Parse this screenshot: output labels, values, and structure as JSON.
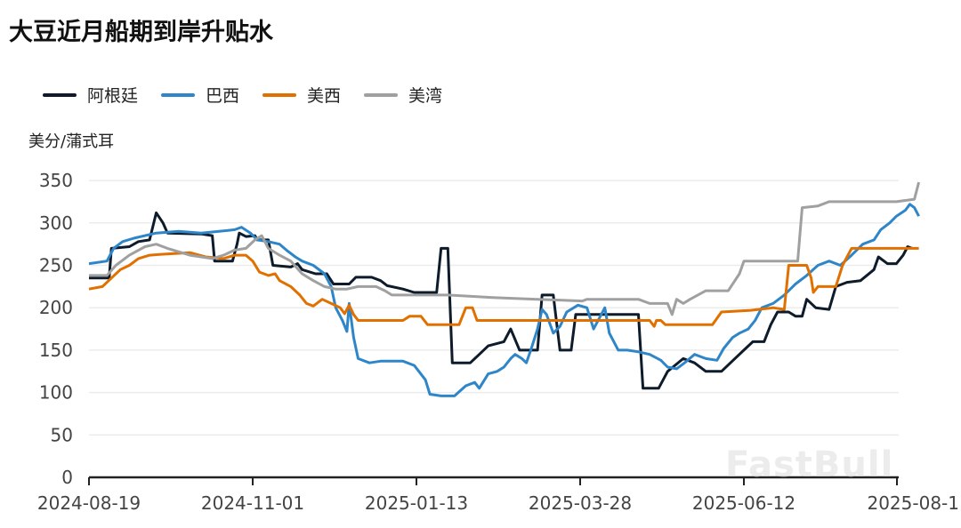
{
  "title": "大豆近月船期到岸升贴水",
  "unit_label": "美分/蒲式耳",
  "watermark": "FastBull",
  "legend": [
    {
      "name": "阿根廷",
      "color": "#0d1b2a"
    },
    {
      "name": "巴西",
      "color": "#2e86c9"
    },
    {
      "name": "美西",
      "color": "#e07000"
    },
    {
      "name": "美湾",
      "color": "#a0a0a0"
    }
  ],
  "chart_data": {
    "type": "line",
    "title": "大豆近月船期到岸升贴水",
    "xlabel": "",
    "ylabel": "美分/蒲式耳",
    "ylim": [
      0,
      350
    ],
    "yticks": [
      0,
      50,
      100,
      150,
      200,
      250,
      300,
      350
    ],
    "xticks": [
      "2024-08-19",
      "2024-11-01",
      "2025-01-13",
      "2025-03-28",
      "2025-06-12",
      "2025-08-1"
    ],
    "x_unit": "days since 2024-08-19",
    "grid": true,
    "legend_position": "top-left",
    "series": [
      {
        "name": "阿根廷",
        "color": "#0d1b2a",
        "points": [
          [
            0,
            235
          ],
          [
            9,
            235
          ],
          [
            10,
            270
          ],
          [
            18,
            272
          ],
          [
            22,
            278
          ],
          [
            27,
            280
          ],
          [
            30,
            312
          ],
          [
            33,
            300
          ],
          [
            35,
            288
          ],
          [
            50,
            287
          ],
          [
            55,
            285
          ],
          [
            56,
            255
          ],
          [
            64,
            255
          ],
          [
            66,
            275
          ],
          [
            67,
            288
          ],
          [
            70,
            284
          ],
          [
            74,
            285
          ],
          [
            75,
            280
          ],
          [
            80,
            280
          ],
          [
            82,
            250
          ],
          [
            90,
            248
          ],
          [
            93,
            252
          ],
          [
            95,
            245
          ],
          [
            101,
            240
          ],
          [
            106,
            240
          ],
          [
            109,
            228
          ],
          [
            116,
            228
          ],
          [
            119,
            236
          ],
          [
            126,
            236
          ],
          [
            130,
            232
          ],
          [
            133,
            226
          ],
          [
            140,
            222
          ],
          [
            145,
            218
          ],
          [
            155,
            218
          ],
          [
            157,
            270
          ],
          [
            160,
            270
          ],
          [
            162,
            135
          ],
          [
            170,
            135
          ],
          [
            174,
            145
          ],
          [
            178,
            155
          ],
          [
            185,
            160
          ],
          [
            188,
            175
          ],
          [
            192,
            150
          ],
          [
            200,
            150
          ],
          [
            202,
            215
          ],
          [
            207,
            215
          ],
          [
            210,
            150
          ],
          [
            215,
            150
          ],
          [
            217,
            192
          ],
          [
            245,
            192
          ],
          [
            247,
            105
          ],
          [
            254,
            105
          ],
          [
            258,
            125
          ],
          [
            265,
            140
          ],
          [
            270,
            135
          ],
          [
            275,
            125
          ],
          [
            282,
            125
          ],
          [
            288,
            140
          ],
          [
            292,
            150
          ],
          [
            296,
            160
          ],
          [
            301,
            160
          ],
          [
            304,
            180
          ],
          [
            307,
            195
          ],
          [
            312,
            195
          ],
          [
            315,
            190
          ],
          [
            318,
            190
          ],
          [
            320,
            210
          ],
          [
            324,
            200
          ],
          [
            330,
            198
          ],
          [
            333,
            225
          ],
          [
            338,
            230
          ],
          [
            344,
            232
          ],
          [
            350,
            245
          ],
          [
            352,
            260
          ],
          [
            356,
            252
          ],
          [
            360,
            252
          ],
          [
            363,
            262
          ],
          [
            365,
            272
          ],
          [
            367,
            270
          ]
        ]
      },
      {
        "name": "巴西",
        "color": "#2e86c9",
        "points": [
          [
            0,
            252
          ],
          [
            8,
            255
          ],
          [
            11,
            270
          ],
          [
            15,
            278
          ],
          [
            20,
            282
          ],
          [
            25,
            285
          ],
          [
            30,
            288
          ],
          [
            40,
            290
          ],
          [
            50,
            288
          ],
          [
            58,
            290
          ],
          [
            65,
            292
          ],
          [
            68,
            295
          ],
          [
            72,
            288
          ],
          [
            75,
            280
          ],
          [
            80,
            278
          ],
          [
            85,
            275
          ],
          [
            88,
            268
          ],
          [
            92,
            260
          ],
          [
            95,
            255
          ],
          [
            100,
            250
          ],
          [
            105,
            240
          ],
          [
            108,
            225
          ],
          [
            110,
            200
          ],
          [
            113,
            185
          ],
          [
            115,
            172
          ],
          [
            116,
            205
          ],
          [
            118,
            165
          ],
          [
            120,
            140
          ],
          [
            125,
            135
          ],
          [
            130,
            137
          ],
          [
            140,
            137
          ],
          [
            145,
            132
          ],
          [
            150,
            115
          ],
          [
            152,
            98
          ],
          [
            157,
            96
          ],
          [
            163,
            96
          ],
          [
            168,
            108
          ],
          [
            172,
            112
          ],
          [
            174,
            105
          ],
          [
            178,
            122
          ],
          [
            182,
            125
          ],
          [
            185,
            130
          ],
          [
            188,
            140
          ],
          [
            190,
            145
          ],
          [
            193,
            140
          ],
          [
            195,
            135
          ],
          [
            197,
            150
          ],
          [
            200,
            175
          ],
          [
            202,
            198
          ],
          [
            204,
            192
          ],
          [
            207,
            170
          ],
          [
            210,
            178
          ],
          [
            213,
            195
          ],
          [
            218,
            203
          ],
          [
            222,
            200
          ],
          [
            225,
            175
          ],
          [
            228,
            190
          ],
          [
            230,
            200
          ],
          [
            232,
            170
          ],
          [
            236,
            150
          ],
          [
            240,
            150
          ],
          [
            245,
            148
          ],
          [
            250,
            145
          ],
          [
            255,
            138
          ],
          [
            258,
            130
          ],
          [
            262,
            128
          ],
          [
            266,
            136
          ],
          [
            270,
            145
          ],
          [
            275,
            140
          ],
          [
            280,
            138
          ],
          [
            283,
            152
          ],
          [
            287,
            165
          ],
          [
            290,
            170
          ],
          [
            294,
            175
          ],
          [
            297,
            185
          ],
          [
            300,
            200
          ],
          [
            305,
            205
          ],
          [
            310,
            215
          ],
          [
            315,
            228
          ],
          [
            320,
            238
          ],
          [
            325,
            250
          ],
          [
            330,
            255
          ],
          [
            335,
            250
          ],
          [
            340,
            262
          ],
          [
            345,
            275
          ],
          [
            350,
            280
          ],
          [
            353,
            292
          ],
          [
            357,
            300
          ],
          [
            360,
            308
          ],
          [
            364,
            315
          ],
          [
            366,
            322
          ],
          [
            368,
            318
          ],
          [
            370,
            308
          ]
        ]
      },
      {
        "name": "美西",
        "color": "#e07000",
        "points": [
          [
            0,
            222
          ],
          [
            6,
            225
          ],
          [
            10,
            235
          ],
          [
            14,
            245
          ],
          [
            18,
            250
          ],
          [
            22,
            258
          ],
          [
            27,
            262
          ],
          [
            32,
            263
          ],
          [
            45,
            265
          ],
          [
            52,
            260
          ],
          [
            60,
            258
          ],
          [
            65,
            262
          ],
          [
            70,
            262
          ],
          [
            73,
            255
          ],
          [
            76,
            242
          ],
          [
            80,
            238
          ],
          [
            83,
            240
          ],
          [
            85,
            232
          ],
          [
            90,
            225
          ],
          [
            94,
            215
          ],
          [
            97,
            205
          ],
          [
            100,
            202
          ],
          [
            104,
            210
          ],
          [
            108,
            205
          ],
          [
            112,
            200
          ],
          [
            114,
            193
          ],
          [
            116,
            203
          ],
          [
            118,
            192
          ],
          [
            120,
            185
          ],
          [
            140,
            185
          ],
          [
            143,
            190
          ],
          [
            148,
            190
          ],
          [
            151,
            180
          ],
          [
            165,
            180
          ],
          [
            168,
            200
          ],
          [
            171,
            200
          ],
          [
            173,
            185
          ],
          [
            245,
            185
          ],
          [
            250,
            185
          ],
          [
            252,
            178
          ],
          [
            253,
            185
          ],
          [
            255,
            185
          ],
          [
            257,
            180
          ],
          [
            265,
            180
          ],
          [
            278,
            180
          ],
          [
            282,
            195
          ],
          [
            295,
            197
          ],
          [
            305,
            200
          ],
          [
            310,
            198
          ],
          [
            312,
            250
          ],
          [
            320,
            250
          ],
          [
            322,
            235
          ],
          [
            323,
            218
          ],
          [
            325,
            225
          ],
          [
            333,
            225
          ],
          [
            336,
            250
          ],
          [
            340,
            270
          ],
          [
            370,
            270
          ]
        ]
      },
      {
        "name": "美湾",
        "color": "#a0a0a0",
        "points": [
          [
            0,
            238
          ],
          [
            8,
            238
          ],
          [
            12,
            250
          ],
          [
            18,
            262
          ],
          [
            25,
            272
          ],
          [
            30,
            275
          ],
          [
            35,
            270
          ],
          [
            45,
            262
          ],
          [
            55,
            258
          ],
          [
            60,
            262
          ],
          [
            65,
            268
          ],
          [
            70,
            270
          ],
          [
            74,
            280
          ],
          [
            77,
            285
          ],
          [
            80,
            270
          ],
          [
            85,
            262
          ],
          [
            90,
            255
          ],
          [
            95,
            240
          ],
          [
            100,
            232
          ],
          [
            105,
            225
          ],
          [
            110,
            222
          ],
          [
            115,
            222
          ],
          [
            120,
            225
          ],
          [
            128,
            225
          ],
          [
            132,
            220
          ],
          [
            135,
            215
          ],
          [
            150,
            215
          ],
          [
            160,
            215
          ],
          [
            180,
            212
          ],
          [
            200,
            210
          ],
          [
            220,
            208
          ],
          [
            222,
            210
          ],
          [
            230,
            210
          ],
          [
            245,
            210
          ],
          [
            250,
            205
          ],
          [
            258,
            205
          ],
          [
            260,
            192
          ],
          [
            262,
            210
          ],
          [
            265,
            205
          ],
          [
            268,
            210
          ],
          [
            275,
            220
          ],
          [
            285,
            220
          ],
          [
            290,
            240
          ],
          [
            292,
            255
          ],
          [
            316,
            255
          ],
          [
            318,
            318
          ],
          [
            325,
            320
          ],
          [
            330,
            325
          ],
          [
            345,
            325
          ],
          [
            360,
            325
          ],
          [
            368,
            328
          ],
          [
            370,
            348
          ]
        ]
      }
    ]
  }
}
